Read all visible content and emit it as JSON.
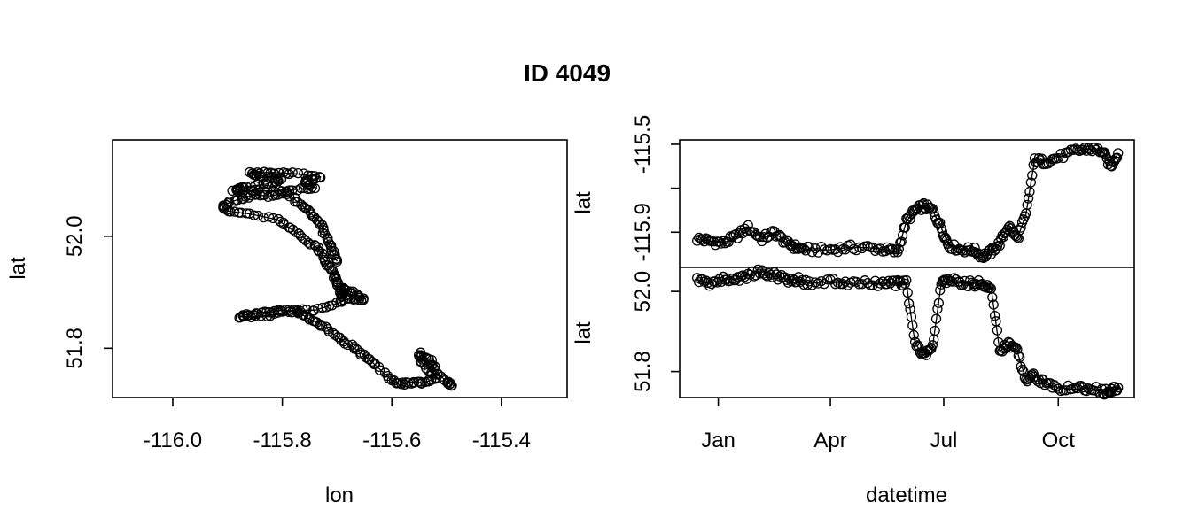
{
  "title": "ID 4049",
  "chart_data": [
    {
      "type": "scatter",
      "title": "",
      "xlabel": "lon",
      "ylabel": "lat",
      "xlim": [
        -116.11,
        -115.28
      ],
      "ylim": [
        51.712,
        52.172
      ],
      "x_ticks": [
        -116.0,
        -115.8,
        -115.6,
        -115.4
      ],
      "x_tick_labels": [
        "-116.0",
        "-115.8",
        "-115.6",
        "-115.4"
      ],
      "y_ticks": [
        51.8,
        52.0
      ],
      "y_tick_labels": [
        "51.8",
        "52.0"
      ],
      "grid": false,
      "track": [
        [
          -115.49,
          51.733
        ],
        [
          -115.5,
          51.74
        ],
        [
          -115.52,
          51.76
        ],
        [
          -115.53,
          51.778
        ],
        [
          -115.55,
          51.792
        ],
        [
          -115.545,
          51.775
        ],
        [
          -115.52,
          51.748
        ],
        [
          -115.54,
          51.738
        ],
        [
          -115.56,
          51.74
        ],
        [
          -115.58,
          51.736
        ],
        [
          -115.6,
          51.742
        ],
        [
          -115.63,
          51.77
        ],
        [
          -115.65,
          51.787
        ],
        [
          -115.675,
          51.805
        ],
        [
          -115.7,
          51.82
        ],
        [
          -115.725,
          51.84
        ],
        [
          -115.75,
          51.852
        ],
        [
          -115.77,
          51.864
        ],
        [
          -115.8,
          51.868
        ],
        [
          -115.83,
          51.864
        ],
        [
          -115.86,
          51.861
        ],
        [
          -115.88,
          51.856
        ],
        [
          -115.83,
          51.857
        ],
        [
          -115.78,
          51.868
        ],
        [
          -115.74,
          51.868
        ],
        [
          -115.7,
          51.88
        ],
        [
          -115.68,
          51.888
        ],
        [
          -115.65,
          51.888
        ],
        [
          -115.67,
          51.898
        ],
        [
          -115.69,
          51.907
        ],
        [
          -115.69,
          51.892
        ],
        [
          -115.7,
          51.915
        ],
        [
          -115.705,
          51.93
        ],
        [
          -115.72,
          51.95
        ],
        [
          -115.73,
          51.973
        ],
        [
          -115.75,
          51.99
        ],
        [
          -115.78,
          52.01
        ],
        [
          -115.81,
          52.03
        ],
        [
          -115.86,
          52.04
        ],
        [
          -115.9,
          52.045
        ],
        [
          -115.91,
          52.055
        ],
        [
          -115.88,
          52.066
        ],
        [
          -115.85,
          52.073
        ],
        [
          -115.82,
          52.072
        ],
        [
          -115.78,
          52.083
        ],
        [
          -115.74,
          52.087
        ],
        [
          -115.76,
          52.097
        ],
        [
          -115.73,
          52.106
        ],
        [
          -115.78,
          52.112
        ],
        [
          -115.82,
          52.114
        ],
        [
          -115.86,
          52.113
        ],
        [
          -115.84,
          52.105
        ],
        [
          -115.8,
          52.102
        ],
        [
          -115.83,
          52.093
        ],
        [
          -115.87,
          52.088
        ],
        [
          -115.89,
          52.08
        ],
        [
          -115.85,
          52.08
        ],
        [
          -115.8,
          52.082
        ],
        [
          -115.77,
          52.06
        ],
        [
          -115.75,
          52.043
        ],
        [
          -115.73,
          52.023
        ],
        [
          -115.72,
          51.998
        ],
        [
          -115.71,
          51.975
        ],
        [
          -115.7,
          51.955
        ]
      ]
    },
    {
      "type": "line",
      "title": "",
      "xlabel": "datetime",
      "panels": [
        {
          "name": "lon",
          "ylabel": "lat",
          "ylim": [
            -116.06,
            -115.48
          ],
          "y_ticks": [
            -115.5,
            -115.7,
            -115.9
          ],
          "y_tick_labels": [
            "-115.5",
            "",
            "-115.9"
          ],
          "x": [
            "2013-12-15",
            "2013-12-25",
            "2014-01-05",
            "2014-01-15",
            "2014-01-25",
            "2014-02-05",
            "2014-02-15",
            "2014-02-25",
            "2014-03-05",
            "2014-03-15",
            "2014-04-01",
            "2014-04-15",
            "2014-05-01",
            "2014-05-15",
            "2014-05-25",
            "2014-06-01",
            "2014-06-08",
            "2014-06-15",
            "2014-06-22",
            "2014-06-29",
            "2014-07-05",
            "2014-07-15",
            "2014-07-25",
            "2014-08-01",
            "2014-08-08",
            "2014-08-15",
            "2014-08-22",
            "2014-08-29",
            "2014-09-05",
            "2014-09-12",
            "2014-09-20",
            "2014-10-01",
            "2014-10-15",
            "2014-10-25",
            "2014-11-05",
            "2014-11-12",
            "2014-11-18"
          ],
          "values": [
            -115.93,
            -115.94,
            -115.95,
            -115.92,
            -115.88,
            -115.93,
            -115.9,
            -115.95,
            -115.97,
            -115.98,
            -115.98,
            -115.97,
            -115.97,
            -115.98,
            -115.99,
            -115.85,
            -115.8,
            -115.78,
            -115.8,
            -115.88,
            -115.96,
            -115.98,
            -115.98,
            -116.01,
            -115.99,
            -115.95,
            -115.87,
            -115.93,
            -115.82,
            -115.57,
            -115.58,
            -115.56,
            -115.53,
            -115.52,
            -115.53,
            -115.6,
            -115.54
          ]
        },
        {
          "name": "lat",
          "ylabel": "lat",
          "ylim": [
            51.735,
            52.06
          ],
          "y_ticks": [
            51.8,
            52.0
          ],
          "y_tick_labels": [
            "51.8",
            "52.0"
          ],
          "x": [
            "2013-12-15",
            "2013-12-25",
            "2014-01-05",
            "2014-01-15",
            "2014-01-25",
            "2014-02-05",
            "2014-02-15",
            "2014-02-25",
            "2014-03-05",
            "2014-03-15",
            "2014-04-01",
            "2014-04-15",
            "2014-05-01",
            "2014-05-15",
            "2014-05-25",
            "2014-06-01",
            "2014-06-08",
            "2014-06-15",
            "2014-06-22",
            "2014-06-29",
            "2014-07-05",
            "2014-07-15",
            "2014-07-25",
            "2014-08-01",
            "2014-08-08",
            "2014-08-15",
            "2014-08-22",
            "2014-08-29",
            "2014-09-05",
            "2014-09-12",
            "2014-09-20",
            "2014-10-01",
            "2014-10-15",
            "2014-10-25",
            "2014-11-05",
            "2014-11-12",
            "2014-11-18"
          ],
          "values": [
            52.03,
            52.02,
            52.03,
            52.03,
            52.04,
            52.05,
            52.04,
            52.03,
            52.03,
            52.02,
            52.025,
            52.02,
            52.02,
            52.02,
            52.02,
            52.02,
            51.87,
            51.84,
            51.86,
            52.02,
            52.03,
            52.02,
            52.02,
            52.02,
            52.01,
            51.85,
            51.87,
            51.85,
            51.78,
            51.79,
            51.77,
            51.76,
            51.755,
            51.76,
            51.75,
            51.75,
            51.76
          ]
        }
      ],
      "x_ticks": [
        "2014-01-01",
        "2014-04-01",
        "2014-07-01",
        "2014-10-01"
      ],
      "x_tick_labels": [
        "Jan",
        "Apr",
        "Jul",
        "Oct"
      ],
      "grid": false
    }
  ]
}
